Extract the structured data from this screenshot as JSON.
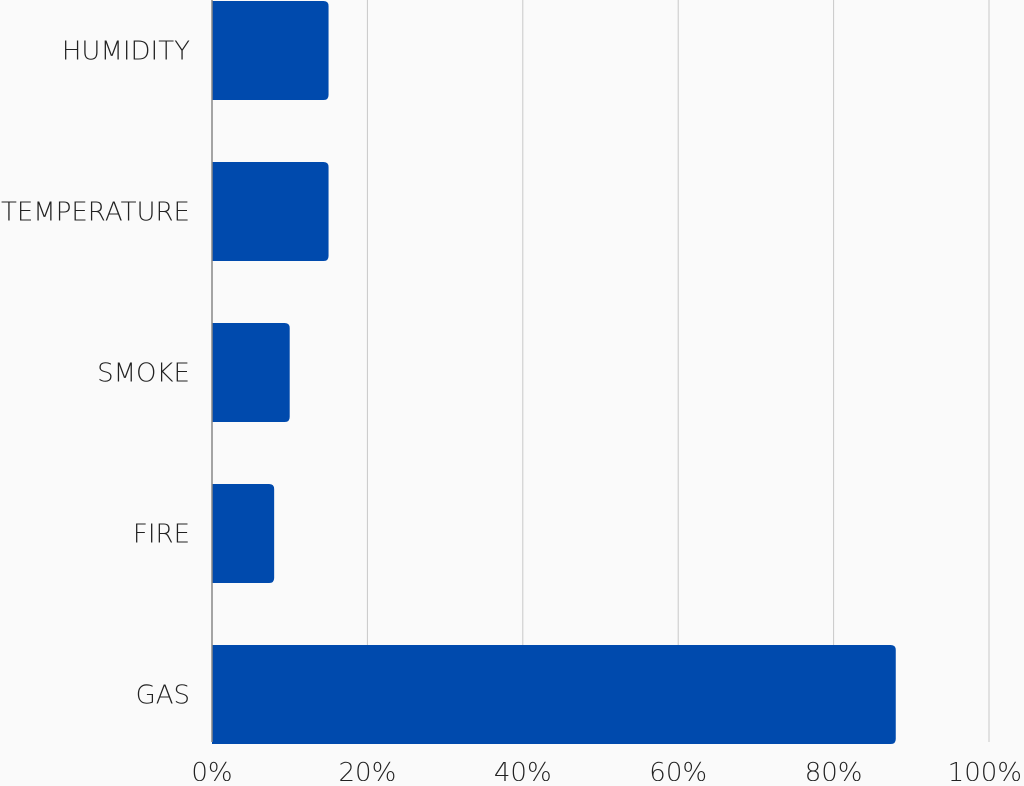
{
  "chart_data": {
    "type": "bar",
    "orientation": "horizontal",
    "categories": [
      "HUMIDITY",
      "TEMPERATURE",
      "SMOKE",
      "FIRE",
      "GAS"
    ],
    "values": [
      15,
      15,
      10,
      8,
      88
    ],
    "xlim": [
      0,
      100
    ],
    "x_ticks": [
      "0%",
      "20%",
      "40%",
      "60%",
      "80%",
      "100%"
    ],
    "title": "",
    "xlabel": "",
    "ylabel": "",
    "grid": "vertical",
    "legend": "none",
    "colors": {
      "bar": "#004aad",
      "grid": "#c8c8c8",
      "axis": "#888888",
      "text": "#222222",
      "background": "#fafafa"
    }
  }
}
